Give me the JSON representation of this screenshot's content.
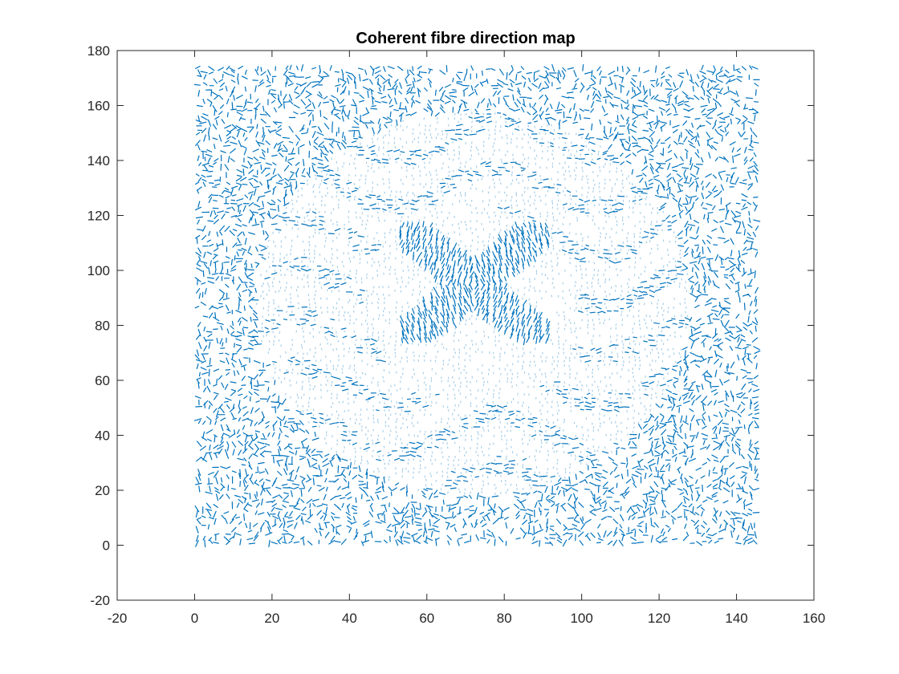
{
  "chart_data": {
    "type": "quiver",
    "title": "Coherent fibre direction map",
    "xlabel": "",
    "ylabel": "",
    "xlim": [
      -20,
      160
    ],
    "ylim": [
      -20,
      180
    ],
    "xticks": [
      -20,
      0,
      20,
      40,
      60,
      80,
      100,
      120,
      140,
      160
    ],
    "yticks": [
      -20,
      0,
      20,
      40,
      60,
      80,
      100,
      120,
      140,
      160,
      180
    ],
    "grid": false,
    "legend": "none",
    "series_color": "#0072BD",
    "field": {
      "x_range": [
        1,
        145
      ],
      "y_range": [
        1,
        174
      ],
      "grid_step": 1.5,
      "description_values": {
        "outer_region": "randomly oriented vectors (noise)",
        "inner_ellipse_center": [
          72,
          88
        ],
        "inner_ellipse_radii": [
          56,
          70
        ],
        "coherent_core_center": [
          72,
          95
        ]
      }
    }
  }
}
